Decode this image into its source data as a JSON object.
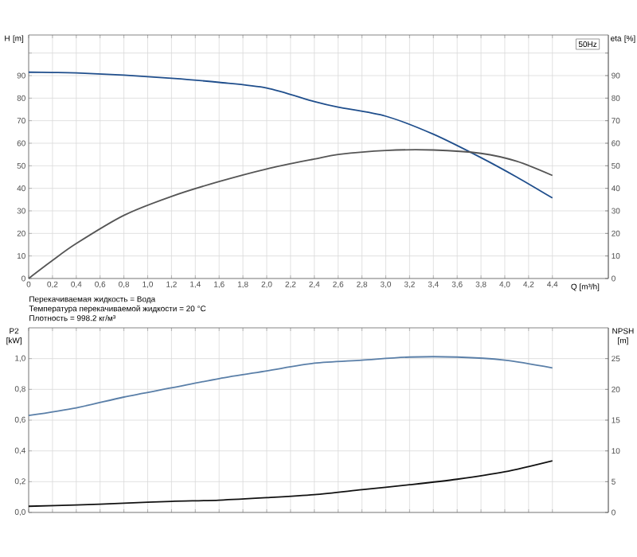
{
  "chart_data": [
    {
      "type": "line",
      "xlabel": "Q [m³/h]",
      "ylabel": "H [m]",
      "y2label": "eta [%]",
      "grid": true,
      "annotations": [
        "50Hz",
        "Перекачиваемая жидкость = Вода",
        "Температура перекачиваемой жидкости = 20 °C",
        "Плотность = 998.2 кг/м³"
      ],
      "x": [
        0,
        0.2,
        0.4,
        0.8,
        1.2,
        1.6,
        2.0,
        2.4,
        2.6,
        3.0,
        3.4,
        3.8,
        4.1,
        4.4
      ],
      "xlim": [
        0,
        4.87
      ],
      "xticks": [
        0,
        {
          "value": 0.2,
          "label": "0,2"
        },
        {
          "value": 0.4,
          "label": "0,4"
        },
        {
          "value": 0.6,
          "label": "0,6"
        },
        {
          "value": 0.8,
          "label": "0,8"
        },
        {
          "value": 1.0,
          "label": "1,0"
        },
        {
          "value": 1.2,
          "label": "1,2"
        },
        {
          "value": 1.4,
          "label": "1,4"
        },
        {
          "value": 1.6,
          "label": "1,6"
        },
        {
          "value": 1.8,
          "label": "1,8"
        },
        {
          "value": 2.0,
          "label": "2,0"
        },
        {
          "value": 2.2,
          "label": "2,2"
        },
        {
          "value": 2.4,
          "label": "2,4"
        },
        {
          "value": 2.6,
          "label": "2,6"
        },
        {
          "value": 2.8,
          "label": "2,8"
        },
        {
          "value": 3.0,
          "label": "3,0"
        },
        {
          "value": 3.2,
          "label": "3,2"
        },
        {
          "value": 3.4,
          "label": "3,4"
        },
        {
          "value": 3.6,
          "label": "3,6"
        },
        {
          "value": 3.8,
          "label": "3,8"
        },
        {
          "value": 4.0,
          "label": "4,0"
        },
        {
          "value": 4.2,
          "label": "4,2"
        },
        {
          "value": 4.4,
          "label": "4,4"
        }
      ],
      "ylim": [
        0,
        108
      ],
      "yticks": [
        0,
        10,
        20,
        30,
        40,
        50,
        60,
        70,
        80,
        90,
        {
          "value": 100,
          "label": null
        }
      ],
      "y2lim": [
        0,
        108
      ],
      "y2ticks": [
        0,
        10,
        20,
        30,
        40,
        50,
        60,
        70,
        80,
        90,
        {
          "value": 100,
          "label": null
        }
      ],
      "series": [
        {
          "color": "#1f4e8c",
          "values": [
            91.5,
            91.4,
            91.2,
            90.2,
            88.8,
            87,
            84.5,
            78.5,
            76,
            72,
            64,
            53.6,
            45,
            35.7
          ]
        },
        {
          "color": "#555555",
          "axis": "y2",
          "values": [
            0,
            8,
            15.5,
            28,
            36.4,
            43,
            48.6,
            53,
            55,
            56.8,
            57,
            55.5,
            52,
            45.7
          ]
        }
      ]
    },
    {
      "type": "line",
      "ylabel": "P2 [kW]",
      "y2label": "NPSH [m]",
      "grid": true,
      "tick_labels": "y",
      "x": [
        0,
        0.4,
        0.8,
        1.2,
        1.6,
        2.0,
        2.4,
        2.8,
        3.2,
        3.6,
        4.0,
        4.4
      ],
      "xlim": [
        0,
        4.87
      ],
      "xticks": [
        0,
        0.2,
        0.4,
        0.6,
        0.8,
        1.0,
        1.2,
        1.4,
        1.6,
        1.8,
        2.0,
        2.2,
        2.4,
        2.6,
        2.8,
        3.0,
        3.2,
        3.4,
        3.6,
        3.8,
        4.0,
        4.2,
        4.4
      ],
      "ylim": [
        0,
        1.2
      ],
      "yticks": [
        {
          "value": 0,
          "label": "0,0"
        },
        {
          "value": 0.2,
          "label": "0,2"
        },
        {
          "value": 0.4,
          "label": "0,4"
        },
        {
          "value": 0.6,
          "label": "0,6"
        },
        {
          "value": 0.8,
          "label": "0,8"
        },
        {
          "value": 1.0,
          "label": "1,0"
        }
      ],
      "y2lim": [
        0,
        30
      ],
      "y2ticks": [
        0,
        5,
        10,
        15,
        20,
        25
      ],
      "series": [
        {
          "color": "#5a7fa8",
          "values": [
            0.63,
            0.68,
            0.75,
            0.81,
            0.87,
            0.92,
            0.97,
            0.99,
            1.01,
            1.01,
            0.99,
            0.94
          ]
        },
        {
          "color": "#111111",
          "axis": "y2",
          "values": [
            1.0,
            1.2,
            1.5,
            1.8,
            2.0,
            2.4,
            2.9,
            3.7,
            4.5,
            5.4,
            6.6,
            8.4
          ]
        }
      ]
    }
  ]
}
